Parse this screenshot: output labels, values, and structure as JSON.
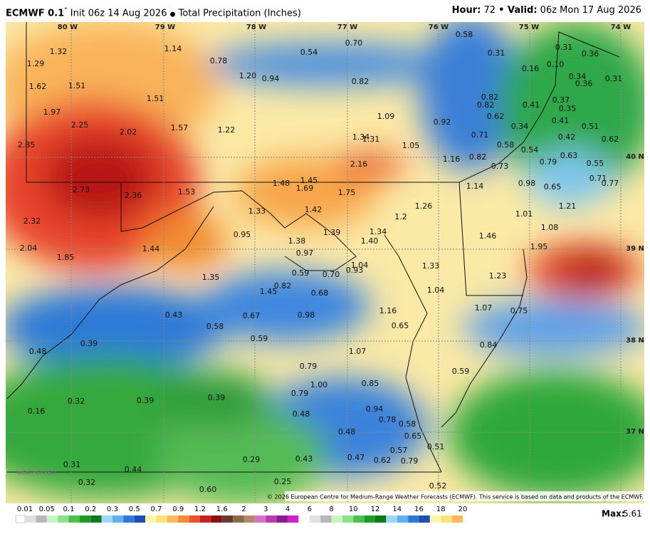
{
  "header": {
    "model": "ECMWF 0.1",
    "degree": "°",
    "init": "Init 06z 14 Aug 2026",
    "bullet": "●",
    "product": "Total Precipitation (Inches)",
    "hour_label": "Hour:",
    "hour": "72",
    "valid_label": "• Valid:",
    "valid": "06z Mon 17 Aug 2026"
  },
  "longitudes": [
    "80 W",
    "79 W",
    "78 W",
    "77 W",
    "76 W",
    "75 W",
    "74 W"
  ],
  "latitudes": [
    "40 N",
    "39 N",
    "38 N",
    "37 N"
  ],
  "values": [
    "1.32",
    "1.29",
    "1.62",
    "1.51",
    "1.97",
    "2.25",
    "2.02",
    "2.85",
    "2.73",
    "2.36",
    "2.32",
    "2.04",
    "1.85",
    "1.44",
    "1.14",
    "0.78",
    "1.20",
    "0.94",
    "1.51",
    "1.57",
    "1.22",
    "0.54",
    "0.70",
    "0.82",
    "1.09",
    "1.34",
    "1.31",
    "1.05",
    "0.92",
    "1.16",
    "0.58",
    "0.31",
    "0.71",
    "0.82",
    "0.82",
    "0.82",
    "0.62",
    "0.58",
    "0.73",
    "0.54",
    "0.79",
    "0.16",
    "0.10",
    "0.31",
    "0.36",
    "0.41",
    "0.37",
    "0.35",
    "0.41",
    "0.34",
    "0.42",
    "0.51",
    "0.63",
    "0.55",
    "0.62",
    "0.34",
    "0.36",
    "0.31",
    "0.71",
    "0.77",
    "0.98",
    "0.65",
    "1.01",
    "1.21",
    "1.08",
    "1.95",
    "1.46",
    "1.23",
    "1.07",
    "0.75",
    "0.84",
    "0.59",
    "1.14",
    "2.16",
    "1.75",
    "1.48",
    "1.45",
    "1.69",
    "1.53",
    "1.42",
    "1.33",
    "0.95",
    "1.39",
    "1.38",
    "1.34",
    "1.40",
    "1.2",
    "1.26",
    "0.97",
    "1.04",
    "1.33",
    "1.04",
    "0.59",
    "0.70",
    "0.93",
    "0.68",
    "0.82",
    "1.45",
    "1.35",
    "0.98",
    "0.67",
    "1.16",
    "0.65",
    "0.43",
    "0.58",
    "0.59",
    "0.39",
    "0.48",
    "1.07",
    "0.79",
    "1.00",
    "0.85",
    "0.79",
    "0.32",
    "0.39",
    "0.39",
    "0.48",
    "0.94",
    "0.78",
    "0.58",
    "0.16",
    "0.48",
    "0.65",
    "0.51",
    "0.57",
    "0.47",
    "0.62",
    "0.79",
    "0.29",
    "0.43",
    "0.31",
    "0.44",
    "0.32",
    "0.25",
    "0.60",
    "0.52"
  ],
  "legend": {
    "ticks": [
      "0.01",
      "0.05",
      "0.1",
      "0.2",
      "0.3",
      "0.5",
      "0.7",
      "0.9",
      "1.2",
      "1.6",
      "2",
      "3",
      "4",
      "6",
      "8",
      "10",
      "12",
      "14",
      "16",
      "18",
      "20"
    ],
    "max_label": "Max:",
    "max_value": "5.61"
  },
  "credit": "© 2026 European Centre for Medium-Range Weather Forecasts (ECMWF). This service is based on data and products of the ECMWF.",
  "logo": "WEATHERBELL"
}
